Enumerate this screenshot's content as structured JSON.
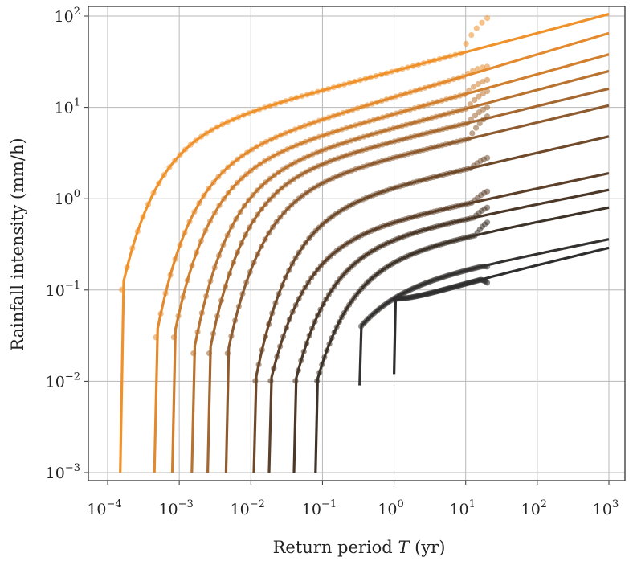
{
  "chart_data": {
    "type": "scatter",
    "title": "",
    "xlabel_prefix": "Return period ",
    "xlabel_var": "T",
    "xlabel_suffix": " (yr)",
    "ylabel": "Rainfall intensity (mm/h)",
    "xscale": "log",
    "yscale": "log",
    "xlim": [
      8e-05,
      1000
    ],
    "ylim": [
      0.001,
      100
    ],
    "grid": true,
    "legend": "none",
    "x_ticks": [
      {
        "base": "10",
        "exp": "−4"
      },
      {
        "base": "10",
        "exp": "−3"
      },
      {
        "base": "10",
        "exp": "−2"
      },
      {
        "base": "10",
        "exp": "−1"
      },
      {
        "base": "10",
        "exp": "0"
      },
      {
        "base": "10",
        "exp": "1"
      },
      {
        "base": "10",
        "exp": "2"
      },
      {
        "base": "10",
        "exp": "3"
      }
    ],
    "y_ticks": [
      {
        "base": "10",
        "exp": "−3"
      },
      {
        "base": "10",
        "exp": "−2"
      },
      {
        "base": "10",
        "exp": "−1"
      },
      {
        "base": "10",
        "exp": "0"
      },
      {
        "base": "10",
        "exp": "1"
      },
      {
        "base": "10",
        "exp": "2"
      }
    ],
    "series": [
      {
        "color": "#F0922C",
        "t_min": 0.00015,
        "i_min": 0.001,
        "knee_i": 0.1,
        "i_at_1yr": 25,
        "i_at_1000yr": 105,
        "obs_max_T": 20,
        "obs_max_i": 95
      },
      {
        "color": "#E48A2E",
        "t_min": 0.00045,
        "i_min": 0.001,
        "knee_i": 0.03,
        "i_at_1yr": 13,
        "i_at_1000yr": 65,
        "obs_max_T": 20,
        "obs_max_i": 28
      },
      {
        "color": "#D07F2F",
        "t_min": 0.0008,
        "i_min": 0.001,
        "knee_i": 0.03,
        "i_at_1yr": 8.5,
        "i_at_1000yr": 38,
        "obs_max_T": 20,
        "obs_max_i": 20
      },
      {
        "color": "#B97330",
        "t_min": 0.0015,
        "i_min": 0.001,
        "knee_i": 0.02,
        "i_at_1yr": 6,
        "i_at_1000yr": 25,
        "obs_max_T": 20,
        "obs_max_i": 15
      },
      {
        "color": "#A46730",
        "t_min": 0.0025,
        "i_min": 0.001,
        "knee_i": 0.02,
        "i_at_1yr": 4.3,
        "i_at_1000yr": 16,
        "obs_max_T": 20,
        "obs_max_i": 10
      },
      {
        "color": "#8D5B2F",
        "t_min": 0.0045,
        "i_min": 0.001,
        "knee_i": 0.02,
        "i_at_1yr": 2.9,
        "i_at_1000yr": 10.5,
        "obs_max_T": 20,
        "obs_max_i": 8
      },
      {
        "color": "#6E4A2B",
        "t_min": 0.011,
        "i_min": 0.001,
        "knee_i": 0.01,
        "i_at_1yr": 1.4,
        "i_at_1000yr": 4.8,
        "obs_max_T": 20,
        "obs_max_i": 2.8
      },
      {
        "color": "#5C4029",
        "t_min": 0.018,
        "i_min": 0.001,
        "knee_i": 0.01,
        "i_at_1yr": 0.6,
        "i_at_1000yr": 1.9,
        "obs_max_T": 20,
        "obs_max_i": 1.2
      },
      {
        "color": "#4B3828",
        "t_min": 0.04,
        "i_min": 0.001,
        "knee_i": 0.01,
        "i_at_1yr": 0.42,
        "i_at_1000yr": 1.25,
        "obs_max_T": 20,
        "obs_max_i": 0.8
      },
      {
        "color": "#3D3329",
        "t_min": 0.08,
        "i_min": 0.001,
        "knee_i": 0.01,
        "i_at_1yr": 0.27,
        "i_at_1000yr": 0.8,
        "obs_max_T": 20,
        "obs_max_i": 0.55
      },
      {
        "color": "#343231",
        "t_min": 0.33,
        "i_min": 0.009,
        "knee_i": 0.04,
        "i_at_1yr": 0.12,
        "i_at_1000yr": 0.36,
        "obs_max_T": 20,
        "obs_max_i": 0.18
      },
      {
        "color": "#2E2E2E",
        "t_min": 1.0,
        "i_min": 0.012,
        "knee_i": 0.08,
        "i_at_1yr": 0.08,
        "i_at_1000yr": 0.29,
        "obs_max_T": 20,
        "obs_max_i": 0.12
      }
    ]
  }
}
